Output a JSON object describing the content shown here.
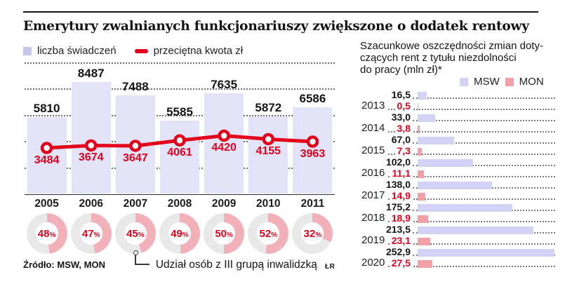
{
  "header": {
    "title": "Emerytury zwalnianych funkcjonariuszy zwiększone o dodatek rentowy"
  },
  "footer": {
    "source": "Źródło: MSW, MON",
    "credit": "ŁR"
  },
  "colors": {
    "accent_red": "#e2001a",
    "bar_lavender": "#e3e3f7",
    "legend_lavender": "#c7c7ed",
    "msw_bar": "#d2d2f4",
    "mon_bar": "#f2a0a7",
    "donut_arc": "#f2b1b8",
    "donut_track": "#e8e8e8",
    "text_black": "#141414"
  },
  "chart_data": [
    {
      "id": "swiadczenia",
      "type": "bar",
      "subtype": "bar+line combo",
      "categories": [
        "2005",
        "2006",
        "2007",
        "2008",
        "2009",
        "2010",
        "2011"
      ],
      "series": [
        {
          "name": "liczba świadczeń",
          "render": "bar",
          "color": "#e3e3f7",
          "values": [
            5810,
            8487,
            7488,
            5585,
            7635,
            5872,
            6586
          ]
        },
        {
          "name": "przeciętna kwota zł",
          "render": "line",
          "color": "#e2001a",
          "values": [
            3484,
            3674,
            3647,
            4061,
            4420,
            4155,
            3963
          ]
        }
      ],
      "ylim": [
        0,
        10000
      ],
      "grid": {
        "horizontal": true,
        "style": "dotted",
        "step": 2000,
        "labels": false
      },
      "legend_position": "top-left"
    },
    {
      "id": "udzial-iii-grupa",
      "type": "pie",
      "subtype": "donut-row",
      "categories": [
        "2005",
        "2006",
        "2007",
        "2008",
        "2009",
        "2010",
        "2011"
      ],
      "values": [
        48,
        47,
        45,
        49,
        50,
        52,
        32
      ],
      "unit": "%",
      "labels": [
        "48",
        "47",
        "45",
        "49",
        "50",
        "52",
        "32"
      ],
      "annotation": "Udział osób z III grupą inwalidzką",
      "annotation_points_to": "2007",
      "colors": {
        "arc": "#f2b1b8",
        "track": "#e8e8e8",
        "label": "#e2001a"
      }
    },
    {
      "id": "oszczednosci",
      "type": "bar",
      "subtype": "horizontal grouped bars",
      "title": "Szacunkowe oszczędności zmian dotyczących rent z tytułu niezdolności do pracy (mln zł)*",
      "title_lines": [
        "Szacunkowe oszczędności zmian doty-",
        "czących rent z tytułu niezdolności",
        "do pracy (mln zł)*"
      ],
      "categories": [
        "2013",
        "2014",
        "2015",
        "2016",
        "2017",
        "2018",
        "2019",
        "2020"
      ],
      "series": [
        {
          "name": "MSW",
          "color": "#d2d2f4",
          "values": [
            16.5,
            33.0,
            67.0,
            102.0,
            138.0,
            175.2,
            213.5,
            252.9
          ],
          "labels": [
            "16,5",
            "33,0",
            "67,0",
            "102,0",
            "138,0",
            "175,2",
            "213,5",
            "252,9"
          ],
          "label_color": "#141414"
        },
        {
          "name": "MON",
          "color": "#f2a0a7",
          "values": [
            0.5,
            3.8,
            7.3,
            11.1,
            14.9,
            18.9,
            23.1,
            27.5
          ],
          "labels": [
            "0,5",
            "3,8",
            "7,3",
            "11,1",
            "14,9",
            "18,9",
            "23,1",
            "27,5"
          ],
          "label_color": "#e2001a"
        }
      ],
      "xlim": [
        0,
        260
      ],
      "grid": {
        "style": "dotted leaders"
      },
      "legend_position": "top-right"
    }
  ]
}
